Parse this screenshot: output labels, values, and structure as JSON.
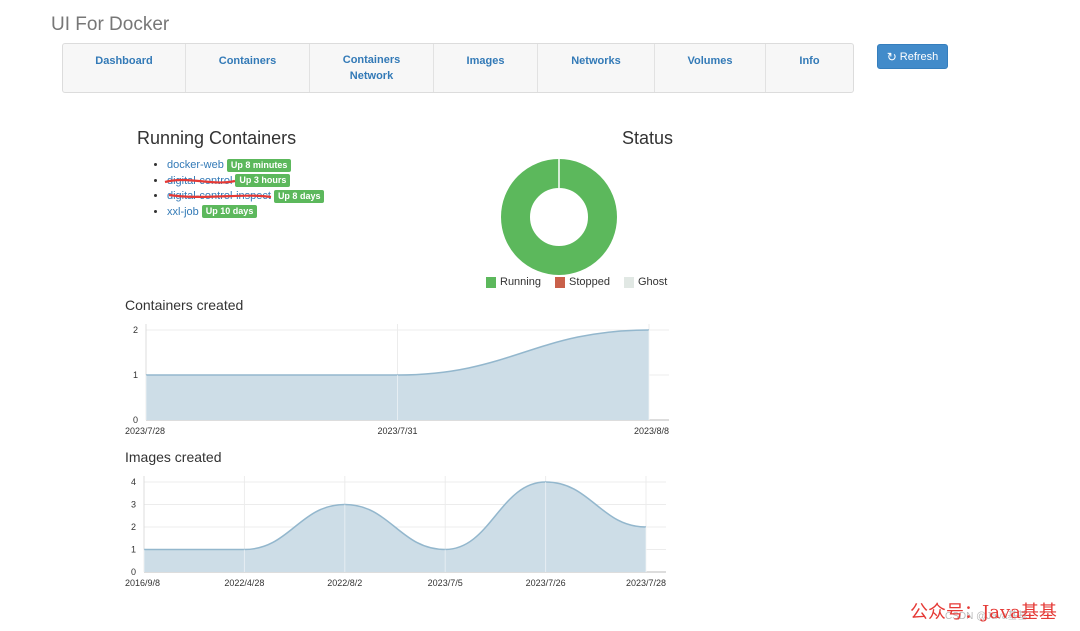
{
  "app": {
    "title": "UI For Docker"
  },
  "nav": {
    "items": [
      {
        "label": "Dashboard"
      },
      {
        "label": "Containers"
      },
      {
        "label": "Containers Network"
      },
      {
        "label": "Images"
      },
      {
        "label": "Networks"
      },
      {
        "label": "Volumes"
      },
      {
        "label": "Info"
      }
    ],
    "refresh_label": "Refresh"
  },
  "running": {
    "heading": "Running Containers",
    "items": [
      {
        "name": "docker-web",
        "status": "Up 8 minutes"
      },
      {
        "name": "digital-control",
        "status": "Up 3 hours"
      },
      {
        "name": "digital-control-inspect",
        "status": "Up 8 days"
      },
      {
        "name": "xxl-job",
        "status": "Up 10 days"
      }
    ]
  },
  "status": {
    "heading": "Status",
    "legend": [
      {
        "label": "Running",
        "color": "#5cb85c"
      },
      {
        "label": "Stopped",
        "color": "#c9604a"
      },
      {
        "label": "Ghost",
        "color": "#e1e8e4"
      }
    ],
    "values": {
      "Running": 4,
      "Stopped": 0,
      "Ghost": 0
    }
  },
  "chart_data": [
    {
      "type": "area",
      "title": "Containers created",
      "x": [
        "2023/7/28",
        "2023/7/31",
        "2023/8/8"
      ],
      "values": [
        1,
        1,
        2
      ],
      "ylim": [
        0,
        2
      ],
      "yticks": [
        "0",
        "1",
        "2"
      ],
      "grid": true,
      "fill": "#cddde7",
      "stroke": "#93b7cd"
    },
    {
      "type": "area",
      "title": "Images created",
      "x": [
        "2016/9/8",
        "2022/4/28",
        "2022/8/2",
        "2023/7/5",
        "2023/7/26",
        "2023/7/28"
      ],
      "values": [
        1,
        1,
        3,
        1,
        4,
        2
      ],
      "ylim": [
        0,
        4
      ],
      "yticks": [
        "0",
        "1",
        "2",
        "3",
        "4"
      ],
      "grid": true,
      "fill": "#cddde7",
      "stroke": "#93b7cd"
    }
  ],
  "watermark": {
    "text": "公众号：Java基基",
    "sub": "CSDN @Java基基"
  }
}
